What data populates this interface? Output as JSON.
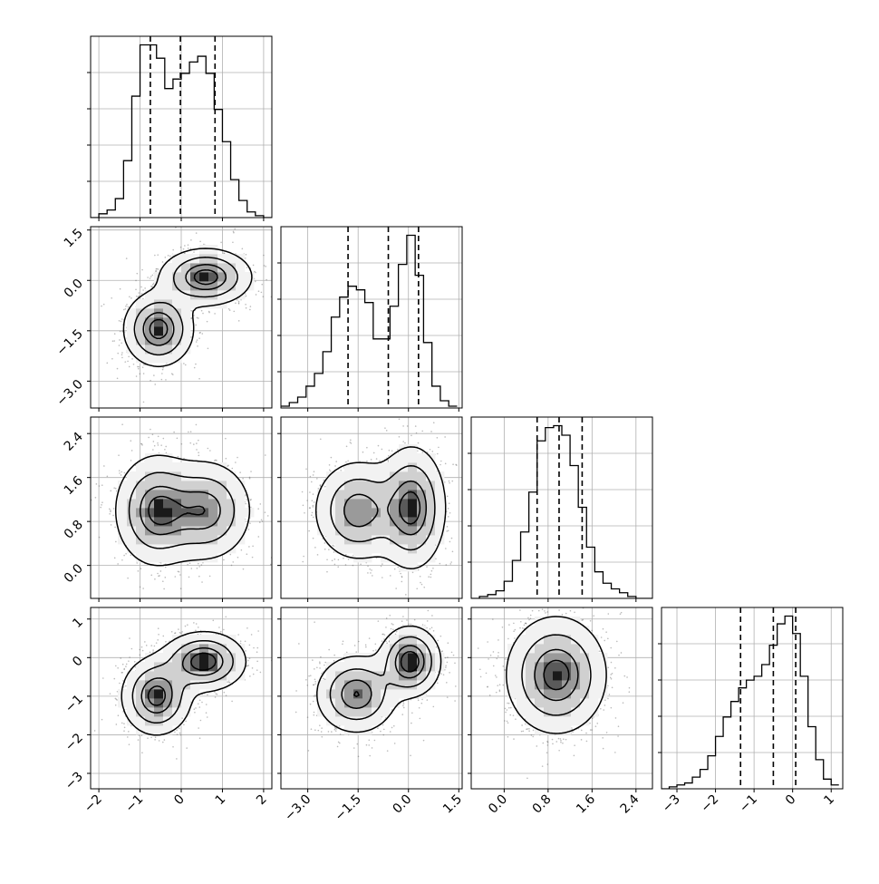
{
  "chart_data": {
    "type": "corner",
    "parameters": [
      {
        "range": [
          -2.2,
          2.2
        ],
        "ticks": [
          -2,
          -1,
          0,
          1,
          2
        ],
        "tick_labels": [
          "−2",
          "−1",
          "0",
          "1",
          "2"
        ],
        "quantiles": [
          -0.75,
          -0.02,
          0.82
        ]
      },
      {
        "range": [
          -3.8,
          1.6
        ],
        "ticks": [
          -3.0,
          -1.5,
          0.0,
          1.5
        ],
        "tick_labels": [
          "−3.0",
          "−1.5",
          "0.0",
          "1.5"
        ],
        "quantiles": [
          -1.8,
          -0.6,
          0.3
        ]
      },
      {
        "range": [
          -0.6,
          2.7
        ],
        "ticks": [
          0.0,
          0.8,
          1.6,
          2.4
        ],
        "tick_labels": [
          "0.0",
          "0.8",
          "1.6",
          "2.4"
        ],
        "quantiles": [
          0.6,
          1.0,
          1.42
        ]
      },
      {
        "range": [
          -3.4,
          1.3
        ],
        "ticks": [
          -3,
          -2,
          -1,
          0,
          1
        ],
        "tick_labels": [
          "−3",
          "−2",
          "−1",
          "0",
          "1"
        ],
        "quantiles": [
          -1.35,
          -0.5,
          0.08
        ]
      }
    ],
    "histograms": [
      {
        "edges": [
          -2.2,
          -2.0,
          -1.8,
          -1.6,
          -1.4,
          -1.2,
          -1.0,
          -0.8,
          -0.6,
          -0.4,
          -0.2,
          0.0,
          0.2,
          0.4,
          0.6,
          0.8,
          1.0,
          1.2,
          1.4,
          1.6,
          1.8,
          2.0,
          2.2
        ],
        "counts": [
          0,
          0.02,
          0.04,
          0.1,
          0.3,
          0.64,
          0.91,
          0.91,
          0.84,
          0.68,
          0.73,
          0.76,
          0.82,
          0.85,
          0.76,
          0.57,
          0.4,
          0.2,
          0.09,
          0.03,
          0.01,
          0
        ]
      },
      {
        "edges": [
          -3.8,
          -3.55,
          -3.3,
          -3.05,
          -2.8,
          -2.55,
          -2.3,
          -2.05,
          -1.8,
          -1.55,
          -1.3,
          -1.05,
          -0.8,
          -0.55,
          -0.3,
          -0.05,
          0.2,
          0.45,
          0.7,
          0.95,
          1.2,
          1.45
        ],
        "counts": [
          0.01,
          0.03,
          0.06,
          0.12,
          0.19,
          0.31,
          0.5,
          0.61,
          0.67,
          0.65,
          0.58,
          0.38,
          0.38,
          0.56,
          0.79,
          0.95,
          0.73,
          0.36,
          0.12,
          0.04,
          0.01
        ]
      },
      {
        "edges": [
          -0.6,
          -0.45,
          -0.3,
          -0.15,
          0.0,
          0.15,
          0.3,
          0.45,
          0.6,
          0.75,
          0.9,
          1.05,
          1.2,
          1.35,
          1.5,
          1.65,
          1.8,
          1.95,
          2.1,
          2.25,
          2.4,
          2.55,
          2.7
        ],
        "counts": [
          0.0,
          0.01,
          0.02,
          0.04,
          0.09,
          0.2,
          0.35,
          0.56,
          0.83,
          0.9,
          0.91,
          0.86,
          0.7,
          0.48,
          0.27,
          0.14,
          0.08,
          0.05,
          0.03,
          0.01,
          0,
          0
        ]
      },
      {
        "edges": [
          -3.4,
          -3.2,
          -3.0,
          -2.8,
          -2.6,
          -2.4,
          -2.2,
          -2.0,
          -1.8,
          -1.6,
          -1.4,
          -1.2,
          -1.0,
          -0.8,
          -0.6,
          -0.4,
          -0.2,
          0.0,
          0.2,
          0.4,
          0.6,
          0.8,
          1.0,
          1.2
        ],
        "counts": [
          0.0,
          0.01,
          0.02,
          0.03,
          0.06,
          0.1,
          0.17,
          0.27,
          0.37,
          0.45,
          0.52,
          0.56,
          0.58,
          0.64,
          0.74,
          0.85,
          0.89,
          0.8,
          0.58,
          0.32,
          0.15,
          0.05,
          0.02
        ]
      }
    ],
    "pairs": [
      {
        "x": 0,
        "y": 1,
        "components": [
          {
            "cx": -0.55,
            "cy": -1.45,
            "sx": 0.42,
            "sy": 0.55,
            "w": 1.0
          },
          {
            "cx": 0.6,
            "cy": 0.1,
            "sx": 0.55,
            "sy": 0.42,
            "w": 1.0
          }
        ]
      },
      {
        "x": 0,
        "y": 2,
        "components": [
          {
            "cx": -0.6,
            "cy": 1.0,
            "sx": 0.5,
            "sy": 0.5,
            "w": 1.0
          },
          {
            "cx": 0.6,
            "cy": 1.0,
            "sx": 0.55,
            "sy": 0.45,
            "w": 0.9
          }
        ]
      },
      {
        "x": 0,
        "y": 3,
        "components": [
          {
            "cx": -0.6,
            "cy": -1.0,
            "sx": 0.42,
            "sy": 0.5,
            "w": 1.0
          },
          {
            "cx": 0.55,
            "cy": -0.1,
            "sx": 0.5,
            "sy": 0.38,
            "w": 1.05
          }
        ]
      },
      {
        "x": 1,
        "y": 2,
        "components": [
          {
            "cx": -1.5,
            "cy": 1.0,
            "sx": 0.65,
            "sy": 0.45,
            "w": 0.9
          },
          {
            "cx": 0.1,
            "cy": 1.05,
            "sx": 0.5,
            "sy": 0.55,
            "w": 1.05
          }
        ]
      },
      {
        "x": 1,
        "y": 3,
        "components": [
          {
            "cx": -1.55,
            "cy": -0.95,
            "sx": 0.6,
            "sy": 0.5,
            "w": 0.9
          },
          {
            "cx": 0.05,
            "cy": -0.1,
            "sx": 0.45,
            "sy": 0.45,
            "w": 1.05
          }
        ]
      },
      {
        "x": 2,
        "y": 3,
        "components": [
          {
            "cx": 0.95,
            "cy": -0.45,
            "sx": 0.45,
            "sy": 0.75,
            "w": 1.0
          }
        ]
      }
    ],
    "colors": {
      "line": "#000000",
      "grid": "#b0b0b0",
      "points": "#555555",
      "density_dark": "#000000",
      "density_light": "#ffffff"
    }
  }
}
